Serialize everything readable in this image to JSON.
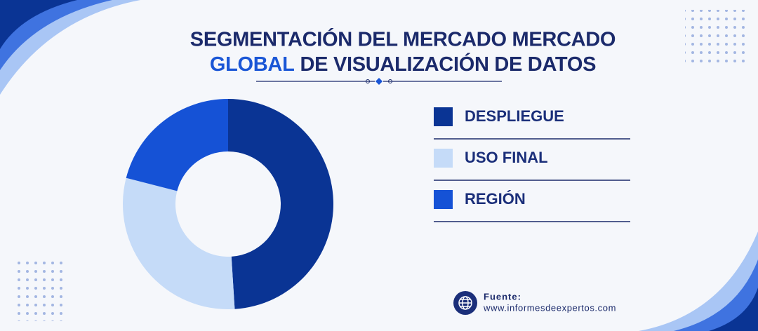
{
  "chart_data": {
    "type": "donut",
    "title": "SEGMENTACIÓN DEL MERCADO MERCADO",
    "title_highlight": "GLOBAL",
    "title_continued": "DE VISUALIZACIÓN DE DATOS",
    "categories": [
      "DESPLIEGUE",
      "USO FINAL",
      "REGIÓN"
    ],
    "values": [
      49,
      30,
      21
    ],
    "colors": [
      "#0a3494",
      "#c5dbf8",
      "#1552d6"
    ],
    "source_label": "Fuente:",
    "source_url": "www.informesdeexpertos.com"
  }
}
